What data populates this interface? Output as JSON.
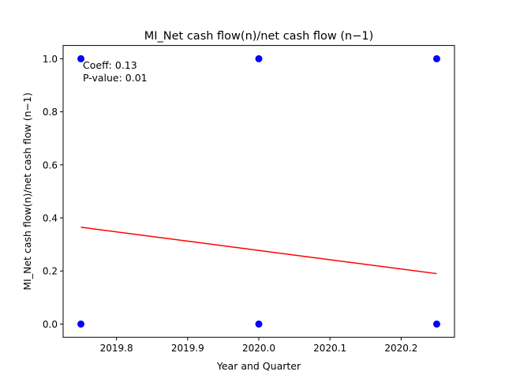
{
  "chart_data": {
    "type": "scatter",
    "title": "MI_Net cash flow(n)/net cash flow (n−1)",
    "xlabel": "Year and Quarter",
    "ylabel": "MI_Net cash flow(n)/net cash flow (n−1)",
    "xlim": [
      2019.725,
      2020.275
    ],
    "ylim": [
      -0.05,
      1.05
    ],
    "x_ticks": [
      2019.8,
      2019.9,
      2020.0,
      2020.1,
      2020.2
    ],
    "x_tick_labels": [
      "2019.8",
      "2019.9",
      "2020.0",
      "2020.1",
      "2020.2"
    ],
    "y_ticks": [
      0.0,
      0.2,
      0.4,
      0.6,
      0.8,
      1.0
    ],
    "y_tick_labels": [
      "0.0",
      "0.2",
      "0.4",
      "0.6",
      "0.8",
      "1.0"
    ],
    "grid": false,
    "points": [
      {
        "x": 2019.75,
        "y": 1.0
      },
      {
        "x": 2019.75,
        "y": 0.0
      },
      {
        "x": 2020.0,
        "y": 1.0
      },
      {
        "x": 2020.0,
        "y": 0.0
      },
      {
        "x": 2020.25,
        "y": 1.0
      },
      {
        "x": 2020.25,
        "y": 0.0
      }
    ],
    "point_color": "#0000ff",
    "trend_line": {
      "x": [
        2019.75,
        2020.25
      ],
      "y": [
        0.365,
        0.19
      ],
      "color": "#ff0000"
    },
    "annotation": {
      "coeff_text": "Coeff: 0.13",
      "pvalue_text": "P-value: 0.01"
    }
  }
}
